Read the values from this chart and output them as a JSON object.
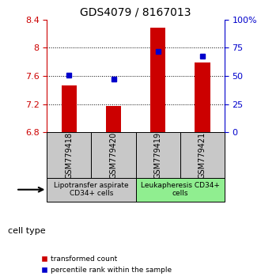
{
  "title": "GDS4079 / 8167013",
  "samples": [
    "GSM779418",
    "GSM779420",
    "GSM779419",
    "GSM779421"
  ],
  "red_values": [
    7.47,
    7.18,
    8.28,
    7.79
  ],
  "blue_values": [
    50.5,
    47.5,
    71.5,
    67.5
  ],
  "ylim_left": [
    6.8,
    8.4
  ],
  "ylim_right": [
    0,
    100
  ],
  "yticks_left": [
    6.8,
    7.2,
    7.6,
    8.0,
    8.4
  ],
  "yticks_right": [
    0,
    25,
    50,
    75,
    100
  ],
  "ytick_labels_left": [
    "6.8",
    "7.2",
    "7.6",
    "8",
    "8.4"
  ],
  "ytick_labels_right": [
    "0",
    "25",
    "50",
    "75",
    "100%"
  ],
  "grid_values": [
    7.2,
    7.6,
    8.0
  ],
  "bar_bottom": 6.8,
  "bar_color": "#cc0000",
  "dot_color": "#0000cc",
  "group1_color": "#c8c8c8",
  "group2_color": "#90ee90",
  "group1_label": "Lipotransfer aspirate\nCD34+ cells",
  "group2_label": "Leukapheresis CD34+\ncells",
  "legend_red": "transformed count",
  "legend_blue": "percentile rank within the sample",
  "cell_type_label": "cell type",
  "left_axis_color": "#cc0000",
  "right_axis_color": "#0000cc"
}
